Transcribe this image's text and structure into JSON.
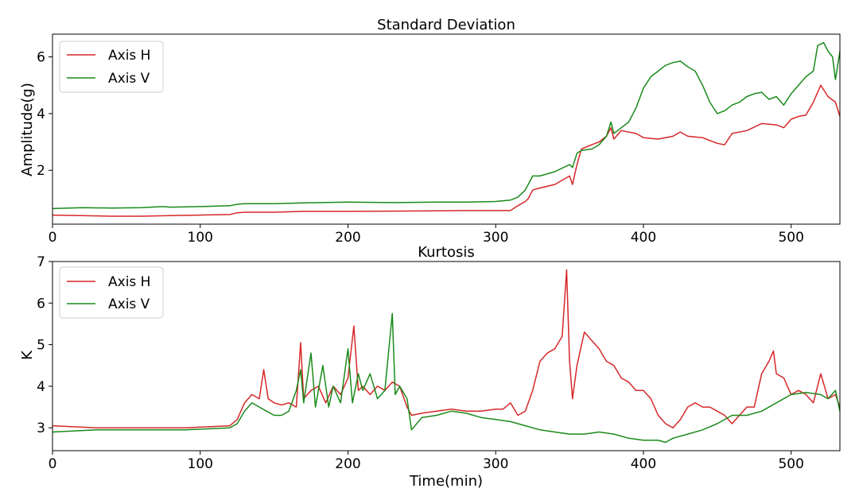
{
  "chart_data": [
    {
      "type": "line",
      "title": "Standard Deviation",
      "xlabel": "",
      "ylabel": "Amplitude(g)",
      "xlim": [
        0,
        533
      ],
      "ylim": [
        0.1,
        6.8
      ],
      "xticks": [
        0,
        100,
        200,
        300,
        400,
        500
      ],
      "yticks": [
        2,
        4,
        6
      ],
      "grid": false,
      "legend_position": "top-left",
      "series": [
        {
          "name": "Axis H",
          "color": "#d62728",
          "points": [
            [
              0,
              0.42
            ],
            [
              20,
              0.4
            ],
            [
              40,
              0.38
            ],
            [
              60,
              0.38
            ],
            [
              80,
              0.4
            ],
            [
              100,
              0.42
            ],
            [
              120,
              0.44
            ],
            [
              125,
              0.5
            ],
            [
              130,
              0.52
            ],
            [
              150,
              0.52
            ],
            [
              170,
              0.55
            ],
            [
              200,
              0.55
            ],
            [
              230,
              0.56
            ],
            [
              260,
              0.57
            ],
            [
              280,
              0.58
            ],
            [
              300,
              0.58
            ],
            [
              310,
              0.58
            ],
            [
              315,
              0.75
            ],
            [
              320,
              0.9
            ],
            [
              322,
              1.0
            ],
            [
              325,
              1.3
            ],
            [
              328,
              1.35
            ],
            [
              340,
              1.5
            ],
            [
              350,
              1.8
            ],
            [
              352,
              1.5
            ],
            [
              355,
              2.2
            ],
            [
              358,
              2.75
            ],
            [
              365,
              2.9
            ],
            [
              370,
              3.0
            ],
            [
              375,
              3.2
            ],
            [
              378,
              3.5
            ],
            [
              380,
              3.1
            ],
            [
              385,
              3.4
            ],
            [
              395,
              3.3
            ],
            [
              400,
              3.15
            ],
            [
              410,
              3.1
            ],
            [
              420,
              3.2
            ],
            [
              425,
              3.35
            ],
            [
              430,
              3.2
            ],
            [
              440,
              3.15
            ],
            [
              450,
              2.95
            ],
            [
              455,
              2.9
            ],
            [
              460,
              3.3
            ],
            [
              470,
              3.4
            ],
            [
              480,
              3.65
            ],
            [
              490,
              3.6
            ],
            [
              495,
              3.5
            ],
            [
              500,
              3.8
            ],
            [
              505,
              3.9
            ],
            [
              510,
              3.95
            ],
            [
              515,
              4.4
            ],
            [
              520,
              5.0
            ],
            [
              525,
              4.6
            ],
            [
              530,
              4.4
            ],
            [
              533,
              3.9
            ]
          ]
        },
        {
          "name": "Axis V",
          "color": "#1a8a1a",
          "points": [
            [
              0,
              0.65
            ],
            [
              20,
              0.68
            ],
            [
              40,
              0.67
            ],
            [
              60,
              0.68
            ],
            [
              75,
              0.72
            ],
            [
              80,
              0.7
            ],
            [
              100,
              0.72
            ],
            [
              120,
              0.75
            ],
            [
              125,
              0.8
            ],
            [
              130,
              0.82
            ],
            [
              150,
              0.82
            ],
            [
              170,
              0.85
            ],
            [
              200,
              0.88
            ],
            [
              230,
              0.86
            ],
            [
              260,
              0.88
            ],
            [
              280,
              0.88
            ],
            [
              300,
              0.9
            ],
            [
              310,
              0.95
            ],
            [
              315,
              1.05
            ],
            [
              320,
              1.3
            ],
            [
              322,
              1.5
            ],
            [
              325,
              1.8
            ],
            [
              330,
              1.8
            ],
            [
              340,
              1.95
            ],
            [
              350,
              2.2
            ],
            [
              352,
              2.1
            ],
            [
              355,
              2.6
            ],
            [
              358,
              2.7
            ],
            [
              365,
              2.75
            ],
            [
              370,
              2.9
            ],
            [
              375,
              3.2
            ],
            [
              378,
              3.7
            ],
            [
              380,
              3.3
            ],
            [
              385,
              3.5
            ],
            [
              390,
              3.7
            ],
            [
              395,
              4.2
            ],
            [
              400,
              4.9
            ],
            [
              405,
              5.3
            ],
            [
              410,
              5.5
            ],
            [
              415,
              5.7
            ],
            [
              420,
              5.8
            ],
            [
              425,
              5.85
            ],
            [
              430,
              5.65
            ],
            [
              435,
              5.5
            ],
            [
              440,
              5.0
            ],
            [
              445,
              4.4
            ],
            [
              450,
              4.0
            ],
            [
              455,
              4.1
            ],
            [
              460,
              4.3
            ],
            [
              465,
              4.4
            ],
            [
              470,
              4.6
            ],
            [
              475,
              4.7
            ],
            [
              480,
              4.75
            ],
            [
              485,
              4.5
            ],
            [
              490,
              4.6
            ],
            [
              495,
              4.3
            ],
            [
              500,
              4.7
            ],
            [
              505,
              5.0
            ],
            [
              510,
              5.3
            ],
            [
              515,
              5.5
            ],
            [
              518,
              6.4
            ],
            [
              522,
              6.5
            ],
            [
              525,
              6.2
            ],
            [
              528,
              6.0
            ],
            [
              530,
              5.2
            ],
            [
              533,
              6.2
            ]
          ]
        }
      ]
    },
    {
      "type": "line",
      "title": "Kurtosis",
      "xlabel": "Time(min)",
      "ylabel": "K",
      "xlim": [
        0,
        533
      ],
      "ylim": [
        2.45,
        7.0
      ],
      "xticks": [
        0,
        100,
        200,
        300,
        400,
        500
      ],
      "yticks": [
        3,
        4,
        5,
        6,
        7
      ],
      "grid": false,
      "legend_position": "top-left",
      "series": [
        {
          "name": "Axis H",
          "color": "#d62728",
          "points": [
            [
              0,
              3.05
            ],
            [
              30,
              3.0
            ],
            [
              60,
              3.0
            ],
            [
              90,
              3.0
            ],
            [
              120,
              3.05
            ],
            [
              125,
              3.2
            ],
            [
              130,
              3.6
            ],
            [
              135,
              3.8
            ],
            [
              140,
              3.7
            ],
            [
              143,
              4.4
            ],
            [
              146,
              3.7
            ],
            [
              150,
              3.6
            ],
            [
              155,
              3.55
            ],
            [
              160,
              3.6
            ],
            [
              165,
              3.5
            ],
            [
              168,
              5.05
            ],
            [
              170,
              3.7
            ],
            [
              175,
              3.9
            ],
            [
              180,
              4.0
            ],
            [
              185,
              3.6
            ],
            [
              190,
              4.0
            ],
            [
              195,
              3.8
            ],
            [
              200,
              4.2
            ],
            [
              204,
              5.45
            ],
            [
              207,
              3.9
            ],
            [
              210,
              4.0
            ],
            [
              215,
              3.8
            ],
            [
              220,
              4.0
            ],
            [
              225,
              3.9
            ],
            [
              230,
              4.1
            ],
            [
              235,
              4.0
            ],
            [
              240,
              3.5
            ],
            [
              243,
              3.3
            ],
            [
              250,
              3.35
            ],
            [
              260,
              3.4
            ],
            [
              270,
              3.45
            ],
            [
              280,
              3.4
            ],
            [
              290,
              3.4
            ],
            [
              300,
              3.45
            ],
            [
              305,
              3.45
            ],
            [
              310,
              3.6
            ],
            [
              315,
              3.3
            ],
            [
              320,
              3.4
            ],
            [
              325,
              3.9
            ],
            [
              330,
              4.6
            ],
            [
              335,
              4.8
            ],
            [
              340,
              4.9
            ],
            [
              345,
              5.2
            ],
            [
              348,
              6.8
            ],
            [
              350,
              4.6
            ],
            [
              352,
              3.7
            ],
            [
              355,
              4.5
            ],
            [
              360,
              5.3
            ],
            [
              365,
              5.1
            ],
            [
              370,
              4.9
            ],
            [
              375,
              4.6
            ],
            [
              380,
              4.5
            ],
            [
              385,
              4.2
            ],
            [
              390,
              4.1
            ],
            [
              395,
              3.9
            ],
            [
              400,
              3.9
            ],
            [
              405,
              3.7
            ],
            [
              410,
              3.3
            ],
            [
              415,
              3.1
            ],
            [
              420,
              3.0
            ],
            [
              425,
              3.2
            ],
            [
              430,
              3.5
            ],
            [
              435,
              3.6
            ],
            [
              440,
              3.5
            ],
            [
              445,
              3.5
            ],
            [
              450,
              3.4
            ],
            [
              455,
              3.3
            ],
            [
              460,
              3.1
            ],
            [
              465,
              3.3
            ],
            [
              470,
              3.5
            ],
            [
              475,
              3.5
            ],
            [
              480,
              4.3
            ],
            [
              485,
              4.6
            ],
            [
              488,
              4.85
            ],
            [
              490,
              4.3
            ],
            [
              495,
              4.2
            ],
            [
              500,
              3.8
            ],
            [
              505,
              3.9
            ],
            [
              510,
              3.8
            ],
            [
              515,
              3.6
            ],
            [
              520,
              4.3
            ],
            [
              525,
              3.7
            ],
            [
              530,
              3.8
            ],
            [
              533,
              3.5
            ]
          ]
        },
        {
          "name": "Axis V",
          "color": "#1a8a1a",
          "points": [
            [
              0,
              2.9
            ],
            [
              30,
              2.95
            ],
            [
              60,
              2.95
            ],
            [
              90,
              2.95
            ],
            [
              120,
              3.0
            ],
            [
              125,
              3.1
            ],
            [
              130,
              3.4
            ],
            [
              135,
              3.6
            ],
            [
              140,
              3.5
            ],
            [
              145,
              3.4
            ],
            [
              150,
              3.3
            ],
            [
              155,
              3.3
            ],
            [
              160,
              3.4
            ],
            [
              165,
              3.9
            ],
            [
              168,
              4.4
            ],
            [
              170,
              3.6
            ],
            [
              175,
              4.8
            ],
            [
              178,
              3.5
            ],
            [
              183,
              4.5
            ],
            [
              187,
              3.5
            ],
            [
              190,
              4.0
            ],
            [
              195,
              3.6
            ],
            [
              200,
              4.9
            ],
            [
              203,
              3.6
            ],
            [
              207,
              4.3
            ],
            [
              210,
              3.9
            ],
            [
              215,
              4.3
            ],
            [
              220,
              3.7
            ],
            [
              225,
              3.9
            ],
            [
              230,
              5.75
            ],
            [
              232,
              3.8
            ],
            [
              235,
              4.0
            ],
            [
              240,
              3.7
            ],
            [
              243,
              2.95
            ],
            [
              250,
              3.25
            ],
            [
              260,
              3.3
            ],
            [
              270,
              3.4
            ],
            [
              280,
              3.35
            ],
            [
              290,
              3.25
            ],
            [
              300,
              3.2
            ],
            [
              310,
              3.15
            ],
            [
              320,
              3.05
            ],
            [
              330,
              2.95
            ],
            [
              340,
              2.9
            ],
            [
              350,
              2.85
            ],
            [
              360,
              2.85
            ],
            [
              370,
              2.9
            ],
            [
              380,
              2.85
            ],
            [
              390,
              2.75
            ],
            [
              400,
              2.7
            ],
            [
              410,
              2.7
            ],
            [
              415,
              2.65
            ],
            [
              420,
              2.75
            ],
            [
              430,
              2.85
            ],
            [
              440,
              2.95
            ],
            [
              450,
              3.1
            ],
            [
              460,
              3.3
            ],
            [
              470,
              3.3
            ],
            [
              480,
              3.4
            ],
            [
              490,
              3.6
            ],
            [
              500,
              3.8
            ],
            [
              510,
              3.85
            ],
            [
              520,
              3.8
            ],
            [
              525,
              3.7
            ],
            [
              530,
              3.9
            ],
            [
              533,
              3.4
            ]
          ]
        }
      ]
    }
  ]
}
